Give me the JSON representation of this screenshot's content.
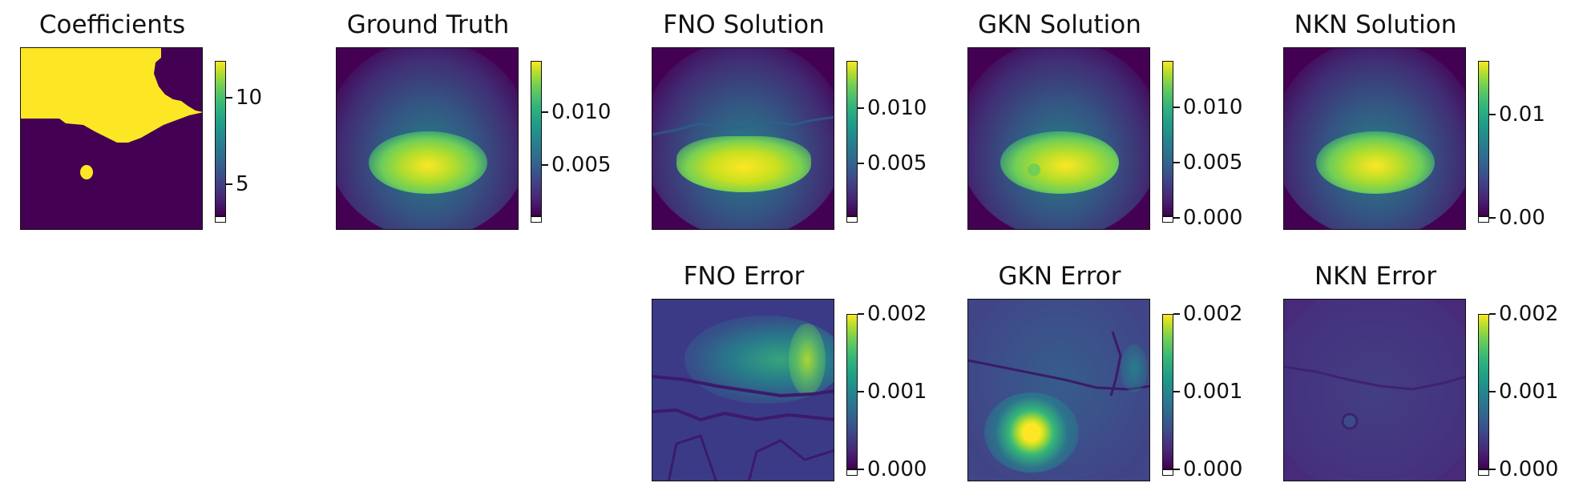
{
  "chart_data": [
    {
      "type": "heatmap",
      "title": "Coefficients",
      "colormap": "viridis",
      "colorbar_ticks": [
        "5",
        "10"
      ],
      "clim": [
        3,
        12
      ]
    },
    {
      "type": "heatmap",
      "title": "Ground Truth",
      "colormap": "viridis",
      "colorbar_ticks": [
        "0.005",
        "0.010"
      ],
      "clim": [
        0.0005,
        0.0143
      ]
    },
    {
      "type": "heatmap",
      "title": "FNO Solution",
      "colormap": "viridis",
      "colorbar_ticks": [
        "0.005",
        "0.010"
      ],
      "clim": [
        0.0005,
        0.0142
      ]
    },
    {
      "type": "heatmap",
      "title": "GKN Solution",
      "colormap": "viridis",
      "colorbar_ticks": [
        "0.000",
        "0.005",
        "0.010"
      ],
      "clim": [
        0.0,
        0.0142
      ]
    },
    {
      "type": "heatmap",
      "title": "NKN Solution",
      "colormap": "viridis",
      "colorbar_ticks": [
        "0.00",
        "0.01"
      ],
      "clim": [
        0.0,
        0.0145
      ]
    },
    {
      "type": "heatmap",
      "title": "FNO Error",
      "colormap": "viridis",
      "colorbar_ticks": [
        "0.000",
        "0.001",
        "0.002"
      ],
      "clim": [
        0.0,
        0.0021
      ]
    },
    {
      "type": "heatmap",
      "title": "GKN Error",
      "colormap": "viridis",
      "colorbar_ticks": [
        "0.000",
        "0.001",
        "0.002"
      ],
      "clim": [
        0.0,
        0.0021
      ]
    },
    {
      "type": "heatmap",
      "title": "NKN Error",
      "colormap": "viridis",
      "colorbar_ticks": [
        "0.000",
        "0.001",
        "0.002"
      ],
      "clim": [
        0.0,
        0.0021
      ]
    }
  ]
}
